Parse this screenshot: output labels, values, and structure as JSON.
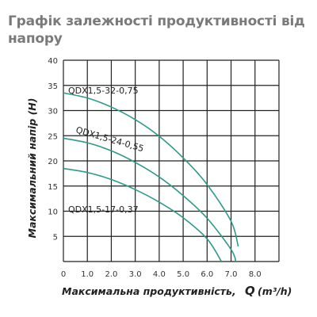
{
  "chart_data": {
    "type": "line",
    "title": "Графік залежності продуктивності від напору",
    "xlabel_main": "Максимальна продуктивність,",
    "xlabel_symbol": "Q",
    "xlabel_unit": "(m³/h)",
    "ylabel": "Максимальний напір (Н)",
    "xlim": [
      0,
      9.0
    ],
    "ylim": [
      0,
      40
    ],
    "xticks": [
      "0",
      "1.0",
      "2.0",
      "3.0",
      "4.0",
      "5.0",
      "6.0",
      "7.0",
      "8.0"
    ],
    "yticks": [
      "5",
      "10",
      "15",
      "20",
      "25",
      "30",
      "35",
      "40"
    ],
    "grid": true,
    "series": [
      {
        "name": "QDX1,5-32-0,75",
        "color": "#2e9a8a",
        "x": [
          0,
          1,
          2,
          3,
          4,
          5,
          6,
          7,
          7.3
        ],
        "y": [
          33.5,
          32.5,
          30.7,
          28.2,
          24.9,
          20.6,
          15.3,
          8.0,
          3.0
        ]
      },
      {
        "name": "QDX1,5-24-0,55",
        "color": "#2e9a8a",
        "x": [
          0,
          1,
          2,
          3,
          4,
          5,
          6,
          7,
          7.2
        ],
        "y": [
          24.5,
          23.6,
          22.0,
          19.7,
          16.8,
          13.1,
          8.6,
          2.4,
          0
        ]
      },
      {
        "name": "QDX1,5-17-0,37",
        "color": "#2e9a8a",
        "x": [
          0,
          1,
          2,
          3,
          4,
          5,
          6,
          6.6
        ],
        "y": [
          18.5,
          17.7,
          16.3,
          14.3,
          11.8,
          8.7,
          4.5,
          0
        ]
      }
    ]
  }
}
